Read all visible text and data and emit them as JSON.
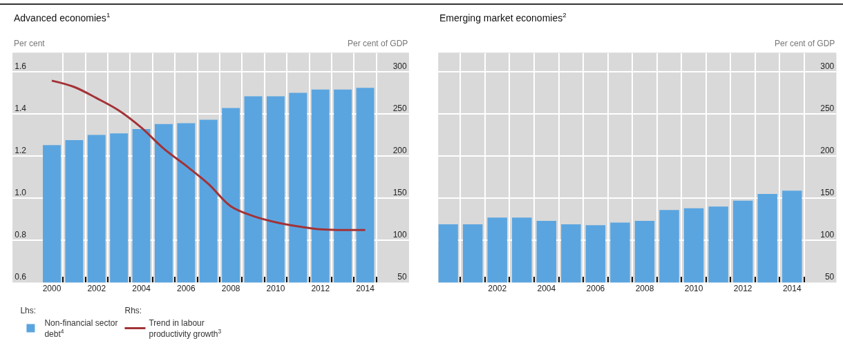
{
  "chart_data": [
    {
      "type": "bar",
      "title": "Advanced economies$^{1}$",
      "ylabel": "Per cent",
      "y2label": "Per cent of GDP",
      "x": [
        2000,
        2001,
        2002,
        2003,
        2004,
        2005,
        2006,
        2007,
        2008,
        2009,
        2010,
        2011,
        2012,
        2013,
        2014
      ],
      "series": [
        {
          "name": "Non-financial sector debt$^{4}$",
          "axis": "y2",
          "color": "#5aa5e0",
          "values": [
            213,
            219,
            225,
            227,
            232,
            238,
            239,
            243,
            257,
            271,
            271,
            275,
            279,
            279,
            281
          ]
        },
        {
          "name": "Trend in labour productivity growth$^{3}$",
          "type": "line",
          "axis": "y",
          "color": "#a33236",
          "values": [
            1.558,
            1.528,
            1.475,
            1.416,
            1.335,
            1.235,
            1.154,
            1.067,
            0.961,
            0.915,
            0.886,
            0.866,
            0.852,
            0.849,
            0.849
          ]
        }
      ],
      "annotations": [
        "Lhs:",
        "Rhs:"
      ],
      "xlim": [
        1998.25,
        2015.95
      ],
      "xticks": [
        2000,
        {
          "value": 2000.5,
          "label": null
        },
        {
          "value": 2001.5,
          "label": null
        },
        2002,
        {
          "value": 2002.5,
          "label": null
        },
        {
          "value": 2003.5,
          "label": null
        },
        2004,
        {
          "value": 2004.5,
          "label": null
        },
        {
          "value": 2005.5,
          "label": null
        },
        2006,
        {
          "value": 2006.5,
          "label": null
        },
        {
          "value": 2007.5,
          "label": null
        },
        2008,
        {
          "value": 2008.5,
          "label": null
        },
        {
          "value": 2009.5,
          "label": null
        },
        2010,
        {
          "value": 2010.5,
          "label": null
        },
        {
          "value": 2011.5,
          "label": null
        },
        2012,
        {
          "value": 2012.5,
          "label": null
        },
        {
          "value": 2013.5,
          "label": null
        },
        2014,
        {
          "value": 2014.5,
          "label": null
        }
      ],
      "ylim": [
        0.6,
        1.69
      ],
      "yticks": [
        0.6,
        0.8,
        {
          "value": 1.0,
          "label": "1.0"
        },
        1.2,
        1.4,
        1.6
      ],
      "y2lim": [
        50,
        322.5
      ],
      "y2ticks": [
        50,
        100,
        150,
        200,
        250,
        300
      ],
      "grid": true,
      "legend": "bottom"
    },
    {
      "type": "bar",
      "title": "Emerging market economies$^{2}$",
      "y2label": "Per cent of GDP",
      "x": [
        2000,
        2001,
        2002,
        2003,
        2004,
        2005,
        2006,
        2007,
        2008,
        2009,
        2010,
        2011,
        2012,
        2013,
        2014
      ],
      "series": [
        {
          "axis": "y2",
          "color": "#5aa5e0",
          "values": [
            119,
            119,
            127,
            127,
            123,
            119,
            118,
            121,
            123,
            136,
            138,
            140,
            147,
            155,
            159
          ]
        }
      ],
      "xlim": [
        1999.6,
        2015.8
      ],
      "xticks": [
        {
          "value": 2000.5,
          "label": null
        },
        {
          "value": 2001.5,
          "label": null
        },
        2002,
        {
          "value": 2002.5,
          "label": null
        },
        {
          "value": 2003.5,
          "label": null
        },
        2004,
        {
          "value": 2004.5,
          "label": null
        },
        {
          "value": 2005.5,
          "label": null
        },
        2006,
        {
          "value": 2006.5,
          "label": null
        },
        {
          "value": 2007.5,
          "label": null
        },
        2008,
        {
          "value": 2008.5,
          "label": null
        },
        {
          "value": 2009.5,
          "label": null
        },
        2010,
        {
          "value": 2010.5,
          "label": null
        },
        {
          "value": 2011.5,
          "label": null
        },
        2012,
        {
          "value": 2012.5,
          "label": null
        },
        {
          "value": 2013.5,
          "label": null
        },
        2014,
        {
          "value": 2014.5,
          "label": null
        }
      ],
      "y2lim": [
        50,
        322.5
      ],
      "y2ticks": [
        50,
        100,
        150,
        200,
        250,
        300
      ],
      "grid": true
    }
  ]
}
